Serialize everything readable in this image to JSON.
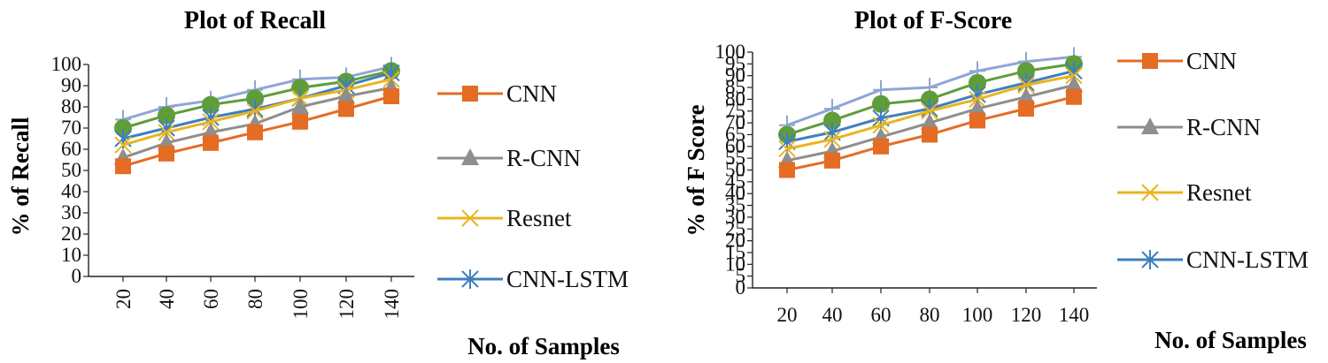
{
  "chart_data": [
    {
      "type": "line",
      "title": "Plot of Recall",
      "xlabel": "No. of Samples",
      "ylabel": "% of Recall",
      "categories": [
        "20",
        "40",
        "60",
        "80",
        "100",
        "120",
        "140"
      ],
      "ylim": [
        0,
        100
      ],
      "yticks": [
        0,
        10,
        20,
        30,
        40,
        50,
        60,
        70,
        80,
        90,
        100
      ],
      "series": [
        {
          "name": "CNN",
          "marker": "square",
          "color": "#E46C23",
          "values": [
            52,
            58,
            63,
            68,
            73,
            79,
            85
          ]
        },
        {
          "name": "R-CNN",
          "marker": "triangle",
          "color": "#8E8E8E",
          "values": [
            56,
            63,
            68,
            72,
            80,
            85,
            89
          ]
        },
        {
          "name": "Resnet",
          "marker": "x",
          "color": "#E8B520",
          "values": [
            62,
            68,
            73,
            78,
            84,
            88,
            93
          ]
        },
        {
          "name": "CNN-LSTM",
          "marker": "asterisk",
          "color": "#3F7FBF",
          "values": [
            65,
            70,
            75,
            79,
            84,
            90,
            96
          ]
        },
        {
          "name": "",
          "marker": "circle",
          "color": "#5F9D3A",
          "values": [
            70,
            76,
            81,
            84,
            89,
            92,
            97
          ]
        },
        {
          "name": "",
          "marker": "plus",
          "color": "#8FA5D6",
          "values": [
            74,
            80,
            83,
            88,
            93,
            94,
            99
          ]
        }
      ],
      "legend": "right"
    },
    {
      "type": "line",
      "title": "Plot of F-Score",
      "xlabel": "No. of Samples",
      "ylabel": "% of F Score",
      "categories": [
        "20",
        "40",
        "60",
        "80",
        "100",
        "120",
        "140"
      ],
      "ylim": [
        0,
        100
      ],
      "yticks": [
        0,
        5,
        10,
        15,
        20,
        25,
        30,
        35,
        40,
        45,
        50,
        55,
        60,
        65,
        70,
        75,
        80,
        85,
        90,
        95,
        100
      ],
      "series": [
        {
          "name": "CNN",
          "marker": "square",
          "color": "#E46C23",
          "values": [
            50,
            54,
            60,
            65,
            71,
            76,
            81
          ]
        },
        {
          "name": "R-CNN",
          "marker": "triangle",
          "color": "#8E8E8E",
          "values": [
            54,
            58,
            64,
            70,
            76,
            81,
            86
          ]
        },
        {
          "name": "Resnet",
          "marker": "x",
          "color": "#E8B520",
          "values": [
            59,
            63,
            69,
            75,
            80,
            86,
            90
          ]
        },
        {
          "name": "CNN-LSTM",
          "marker": "asterisk",
          "color": "#3F7FBF",
          "values": [
            62,
            66,
            72,
            76,
            82,
            87,
            92
          ]
        },
        {
          "name": "",
          "marker": "circle",
          "color": "#5F9D3A",
          "values": [
            65,
            71,
            78,
            80,
            87,
            92,
            95
          ]
        },
        {
          "name": "",
          "marker": "plus",
          "color": "#8FA5D6",
          "values": [
            69,
            76,
            84,
            85,
            92,
            96,
            98
          ]
        }
      ],
      "legend": "right"
    }
  ]
}
